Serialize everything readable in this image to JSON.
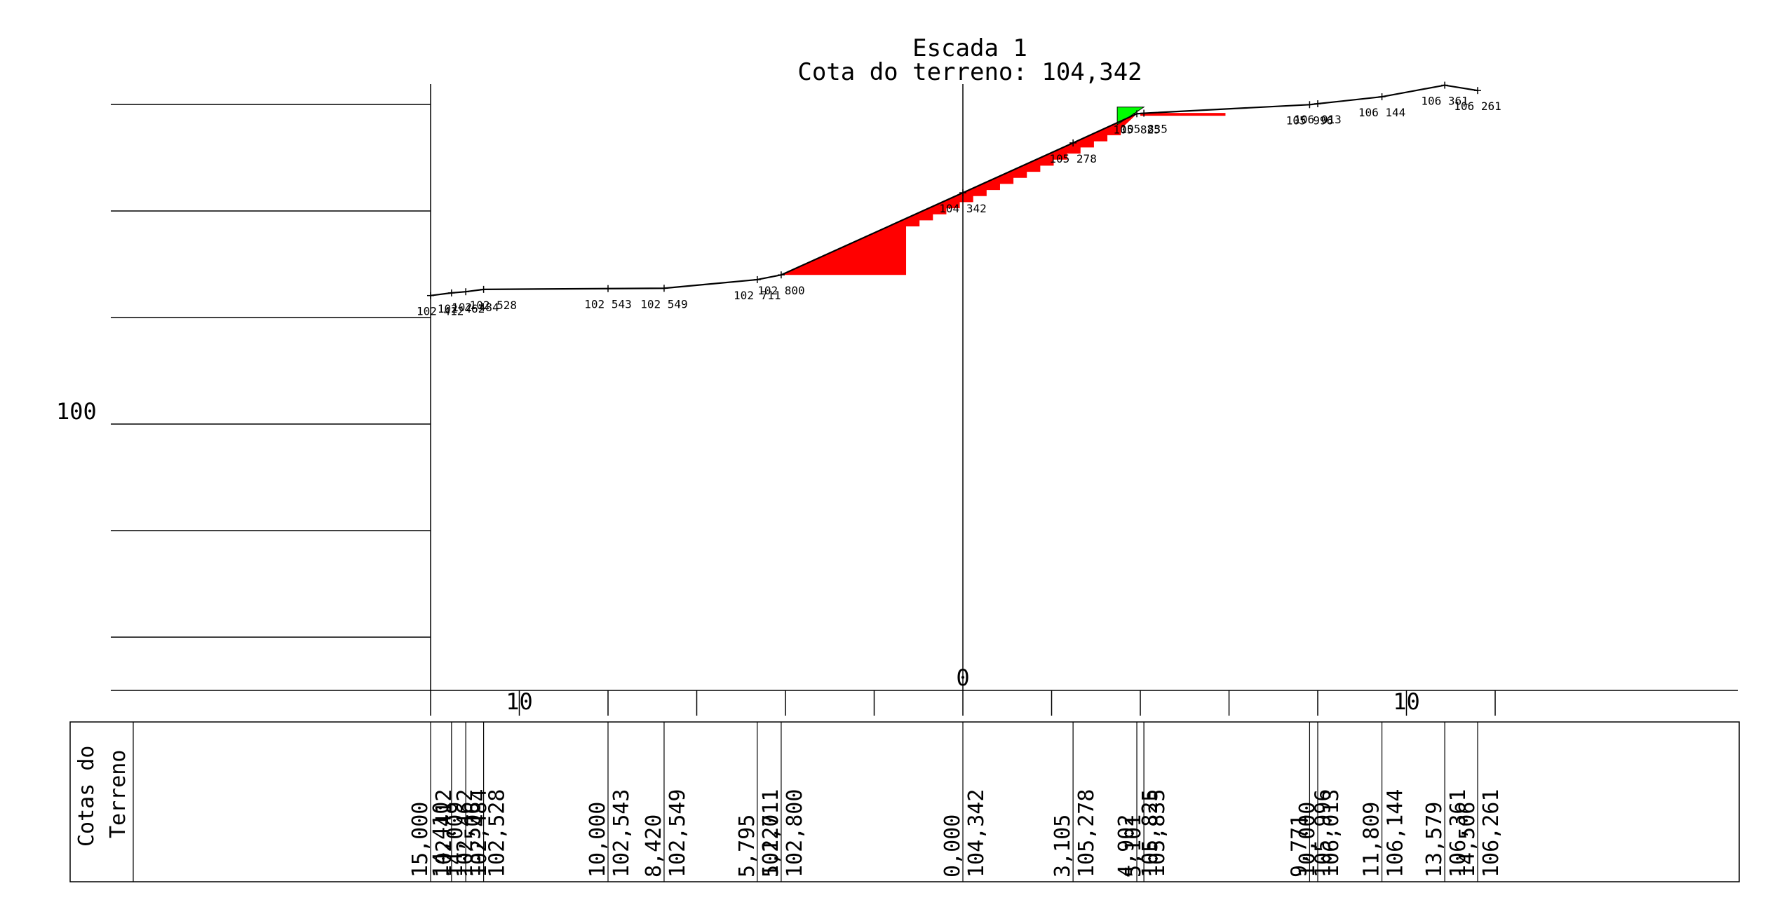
{
  "title": "Escada 1",
  "subtitle": "Cota do terreno: 104,342",
  "y_axis": {
    "label_value": "100",
    "ticks": [
      106,
      104,
      102,
      100,
      98,
      96
    ]
  },
  "x_axis": {
    "ticks": [
      -15,
      -12.5,
      -10,
      -7.5,
      -5,
      -2.5,
      0,
      2.5,
      5,
      7.5,
      10,
      12.5,
      15
    ],
    "labels": [
      {
        "offset": -12.5,
        "text": "10"
      },
      {
        "offset": 0,
        "text": "0"
      },
      {
        "offset": 12.5,
        "text": "10"
      }
    ]
  },
  "terrain_points": [
    {
      "offset": -15.0,
      "elev": 102.412,
      "label": "102 412"
    },
    {
      "offset": -14.41,
      "elev": 102.462,
      "label": "102 462"
    },
    {
      "offset": -14.009,
      "elev": 102.484,
      "label": "102 484"
    },
    {
      "offset": -13.506,
      "elev": 102.528,
      "label": "102 528"
    },
    {
      "offset": -10.0,
      "elev": 102.543,
      "label": "102 543"
    },
    {
      "offset": -8.42,
      "elev": 102.549,
      "label": "102 549"
    },
    {
      "offset": -5.795,
      "elev": 102.711,
      "label": "102 711"
    },
    {
      "offset": -5.12,
      "elev": 102.8,
      "label": "102 800"
    },
    {
      "offset": 0.0,
      "elev": 104.342,
      "label": "104 342"
    },
    {
      "offset": 3.105,
      "elev": 105.278,
      "label": "105 278"
    },
    {
      "offset": 4.902,
      "elev": 105.825,
      "label": "105 825"
    },
    {
      "offset": 5.101,
      "elev": 105.835,
      "label": "105 835"
    },
    {
      "offset": 9.771,
      "elev": 105.996,
      "label": "105 996"
    },
    {
      "offset": 10.0,
      "elev": 106.013,
      "label": "106 013"
    },
    {
      "offset": 11.809,
      "elev": 106.144,
      "label": "106 144"
    },
    {
      "offset": 13.579,
      "elev": 106.361,
      "label": "106 361"
    },
    {
      "offset": 14.506,
      "elev": 106.261,
      "label": "106 261"
    }
  ],
  "table": {
    "header_line1": "Cotas do",
    "header_line2": "Terreno",
    "columns": [
      {
        "offset": -15.0,
        "distance": "15,000",
        "elevation": "102,412"
      },
      {
        "offset": -14.41,
        "distance": "14,410",
        "elevation": "102,462"
      },
      {
        "offset": -14.009,
        "distance": "14,009",
        "elevation": "102,484"
      },
      {
        "offset": -13.506,
        "distance": "13,506",
        "elevation": "102,528"
      },
      {
        "offset": -10.0,
        "distance": "10,000",
        "elevation": "102,543"
      },
      {
        "offset": -8.42,
        "distance": "8,420",
        "elevation": "102,549"
      },
      {
        "offset": -5.795,
        "distance": "5,795",
        "elevation": "102,711"
      },
      {
        "offset": -5.12,
        "distance": "5,120",
        "elevation": "102,800"
      },
      {
        "offset": 0.0,
        "distance": "0,000",
        "elevation": "104,342"
      },
      {
        "offset": 3.105,
        "distance": "3,105",
        "elevation": "105,278"
      },
      {
        "offset": 4.902,
        "distance": "4,902",
        "elevation": "105,825"
      },
      {
        "offset": 5.101,
        "distance": "5,101",
        "elevation": "105,835"
      },
      {
        "offset": 9.771,
        "distance": "9,771",
        "elevation": "105,996"
      },
      {
        "offset": 10.0,
        "distance": "10,000",
        "elevation": "106,013"
      },
      {
        "offset": 11.809,
        "distance": "11,809",
        "elevation": "106,144"
      },
      {
        "offset": 13.579,
        "distance": "13,579",
        "elevation": "106,361"
      },
      {
        "offset": 14.506,
        "distance": "14,506",
        "elevation": "106,261"
      }
    ]
  },
  "fill_color": "#ff0000",
  "cut_color": "#00ff00",
  "line_color": "#000000"
}
